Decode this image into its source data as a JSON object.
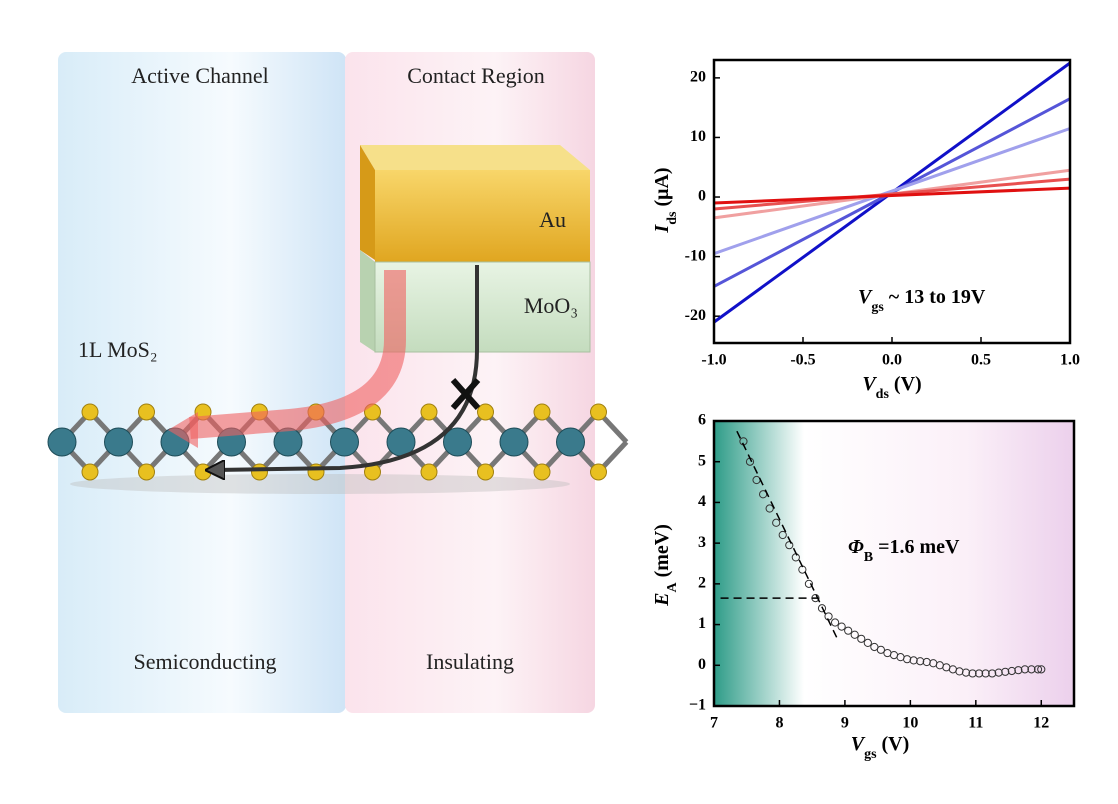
{
  "diagram": {
    "left_title": "Active Channel",
    "right_title": "Contact Region",
    "metal": "Au",
    "oxide": "MoO₃",
    "layer": "1L MoS₂",
    "left_bottom": "Semiconducting",
    "right_bottom": "Insulating"
  },
  "chart_data": [
    {
      "type": "line",
      "xlim": [
        -1,
        1
      ],
      "ylim": [
        -24.5,
        23
      ],
      "xticks": [
        {
          "value": -1,
          "label": "-1.0"
        },
        -0.5,
        {
          "value": 0,
          "label": "0.0"
        },
        0.5,
        {
          "value": 1,
          "label": "1.0"
        }
      ],
      "yticks": [
        -20,
        -10,
        0,
        10,
        20
      ],
      "xlabel": [
        "V",
        "ds",
        " (V)"
      ],
      "ylabel": [
        "I",
        "ds",
        " (μA)"
      ],
      "annotation": [
        "V",
        "gs",
        " ~ 13 to 19V"
      ],
      "x": [
        -1,
        1
      ],
      "series": [
        {
          "color": "#1010c8",
          "values": [
            -21,
            22.5
          ]
        },
        {
          "color": "#5555d8",
          "values": [
            -15,
            16.5
          ]
        },
        {
          "color": "#a0a0ec",
          "values": [
            -9.5,
            11.5
          ]
        },
        {
          "color": "#f0a0a0",
          "values": [
            -3.5,
            4.5
          ]
        },
        {
          "color": "#e85050",
          "values": [
            -2,
            3
          ]
        },
        {
          "color": "#e01010",
          "values": [
            -1,
            1.5
          ]
        }
      ]
    },
    {
      "type": "scatter",
      "xlim": [
        7,
        12.5
      ],
      "ylim": [
        -1,
        6
      ],
      "xticks": [
        7,
        8,
        9,
        10,
        11,
        12
      ],
      "yticks": [
        {
          "value": -1,
          "label": "−1"
        },
        0,
        1,
        2,
        3,
        4,
        5,
        6
      ],
      "xlabel": [
        "V",
        "gs",
        " (V)"
      ],
      "ylabel": [
        "E",
        "A",
        " (meV)"
      ],
      "annotation": [
        "Φ",
        "B",
        " =1.6 meV"
      ],
      "series": [
        {
          "style": "markers",
          "color": "#333333",
          "x": [
            7.45,
            7.55,
            7.65,
            7.75,
            7.85,
            7.95,
            8.05,
            8.15,
            8.25,
            8.35,
            8.45,
            8.55,
            8.65,
            8.75,
            8.85,
            8.95,
            9.05,
            9.15,
            9.25,
            9.35,
            9.45,
            9.55,
            9.65,
            9.75,
            9.85,
            9.95,
            10.05,
            10.15,
            10.25,
            10.35,
            10.45,
            10.55,
            10.65,
            10.75,
            10.85,
            10.95,
            11.05,
            11.15,
            11.25,
            11.35,
            11.45,
            11.55,
            11.65,
            11.75,
            11.85,
            11.95,
            12.0
          ],
          "values": [
            5.5,
            5.0,
            4.55,
            4.2,
            3.85,
            3.5,
            3.2,
            2.95,
            2.65,
            2.35,
            2.0,
            1.65,
            1.4,
            1.2,
            1.05,
            0.95,
            0.85,
            0.75,
            0.65,
            0.55,
            0.45,
            0.38,
            0.3,
            0.25,
            0.2,
            0.15,
            0.12,
            0.1,
            0.08,
            0.05,
            0,
            -0.05,
            -0.1,
            -0.15,
            -0.18,
            -0.2,
            -0.2,
            -0.2,
            -0.2,
            -0.18,
            -0.16,
            -0.14,
            -0.12,
            -0.1,
            -0.1,
            -0.1,
            -0.1
          ]
        },
        {
          "style": "dashed",
          "color": "#000000",
          "x": [
            7.35,
            8.9
          ],
          "values": [
            5.75,
            0.6
          ]
        },
        {
          "style": "dashed",
          "color": "#000000",
          "x": [
            7.1,
            8.6
          ],
          "values": [
            1.65,
            1.65
          ]
        }
      ]
    }
  ]
}
